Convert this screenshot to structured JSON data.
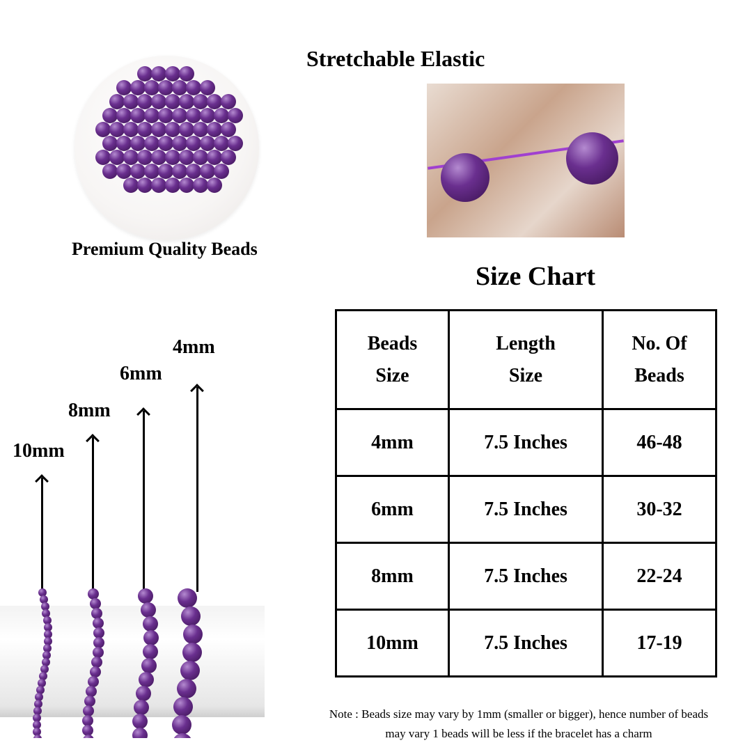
{
  "captions": {
    "beads": "Premium Quality Beads",
    "elastic": "Stretchable Elastic",
    "size_chart_title": "Size Chart"
  },
  "bracelet_labels": [
    "10mm",
    "8mm",
    "6mm",
    "4mm"
  ],
  "size_chart": {
    "headers": [
      [
        "Beads",
        "Size"
      ],
      [
        "Length",
        "Size"
      ],
      [
        "No. Of",
        "Beads"
      ]
    ],
    "rows": [
      [
        "4mm",
        "7.5 Inches",
        "46-48"
      ],
      [
        "6mm",
        "7.5 Inches",
        "30-32"
      ],
      [
        "8mm",
        "7.5 Inches",
        "22-24"
      ],
      [
        "10mm",
        "7.5 Inches",
        "17-19"
      ]
    ]
  },
  "note": {
    "line1": "Note : Beads size may vary by 1mm (smaller or bigger), hence number of beads",
    "line2": "may vary 1 beads will be less if the bracelet has a charm"
  },
  "colors": {
    "amethyst": "#5a2080",
    "elastic": "#a040d0"
  }
}
